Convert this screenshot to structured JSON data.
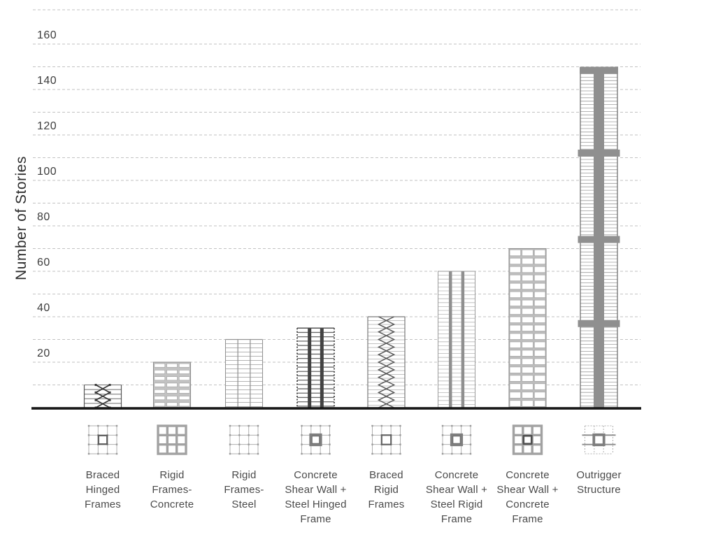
{
  "chart_data": {
    "type": "bar",
    "title": "",
    "xlabel": "",
    "ylabel": "Number of Stories",
    "ylim": [
      0,
      175
    ],
    "yticks": [
      20,
      40,
      60,
      80,
      100,
      120,
      140,
      160
    ],
    "gridline_step": 10,
    "grid_style": "dashed-horizontal",
    "has_top_border_line": true,
    "legend": "none",
    "categories": [
      {
        "label": "Braced Hinged Frames",
        "label_lines": [
          "Braced",
          "Hinged",
          "Frames"
        ],
        "value": 10,
        "elevation_pattern": "x-braced-frame",
        "plan_icon": "hinged-frame-plan-core"
      },
      {
        "label": "Rigid Frames- Concrete",
        "label_lines": [
          "Rigid",
          "Frames-",
          "Concrete"
        ],
        "value": 20,
        "elevation_pattern": "concrete-window-grid",
        "plan_icon": "heavy-concrete-plan"
      },
      {
        "label": "Rigid Frames- Steel",
        "label_lines": [
          "Rigid",
          "Frames-",
          "Steel"
        ],
        "value": 30,
        "elevation_pattern": "steel-frame-lines",
        "plan_icon": "steel-frame-plan"
      },
      {
        "label": "Concrete Shear Wall + Steel Hinged Frame",
        "label_lines": [
          "Concrete",
          "Shear Wall +",
          "Steel Hinged",
          "Frame"
        ],
        "value": 35,
        "elevation_pattern": "shear-wall-dark-stripes",
        "plan_icon": "frame-plan-thick-core"
      },
      {
        "label": "Braced Rigid Frames",
        "label_lines": [
          "Braced",
          "Rigid",
          "Frames"
        ],
        "value": 40,
        "elevation_pattern": "diamond-braced",
        "plan_icon": "frame-plan-thin-core"
      },
      {
        "label": "Concrete Shear Wall + Steel Rigid Frame",
        "label_lines": [
          "Concrete",
          "Shear Wall +",
          "Steel Rigid",
          "Frame"
        ],
        "value": 60,
        "elevation_pattern": "shear-wall-gray-stripes",
        "plan_icon": "frame-plan-thick-core"
      },
      {
        "label": "Concrete Shear Wall + Concrete Frame",
        "label_lines": [
          "Concrete",
          "Shear Wall +",
          "Concrete",
          "Frame"
        ],
        "value": 70,
        "elevation_pattern": "concrete-window-grid-tall",
        "plan_icon": "heavy-concrete-plan-core"
      },
      {
        "label": "Outrigger Structure",
        "label_lines": [
          "Outrigger",
          "Structure"
        ],
        "value": 150,
        "elevation_pattern": "core-outrigger",
        "plan_icon": "outrigger-plan"
      }
    ],
    "values": [
      10,
      20,
      30,
      35,
      40,
      60,
      70,
      150
    ],
    "outrigger_band_stories": [
      150,
      112,
      74,
      37
    ],
    "colors": {
      "background": "#ffffff",
      "grid_line": "#c2c2c2",
      "axis_baseline": "#161616",
      "bar_outline": "#979797",
      "fine_line": "#9c9c9c",
      "dark_stripe": "#424242",
      "gray_fill": "#8f8f8f",
      "window_frame": "#c2c2c2",
      "heavy_plan_grid": "#a2a2a2",
      "text": "#4a4a4a",
      "tick_text": "#3d3d3d"
    }
  }
}
